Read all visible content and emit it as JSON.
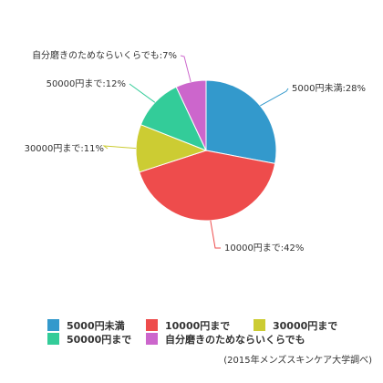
{
  "chart_data": {
    "type": "pie",
    "slices": [
      {
        "label": "5000円未満",
        "value": 28,
        "color": "#3399cc",
        "callout": "5000円未満:28%"
      },
      {
        "label": "10000円まで",
        "value": 42,
        "color": "#ee4c4c",
        "callout": "10000円まで:42%"
      },
      {
        "label": "30000円まで",
        "value": 11,
        "color": "#cccc33",
        "callout": "30000円まで:11%"
      },
      {
        "label": "50000円まで",
        "value": 12,
        "color": "#33cc99",
        "callout": "50000円まで:12%"
      },
      {
        "label": "自分磨きのためならいくらでも",
        "value": 7,
        "color": "#cc66cc",
        "callout": "自分磨きのためならいくらでも:7%"
      }
    ],
    "start_angle_deg": 0,
    "direction": "clockwise",
    "legend_position": "bottom",
    "source": "(2015年メンズスキンケア大学調べ)"
  }
}
